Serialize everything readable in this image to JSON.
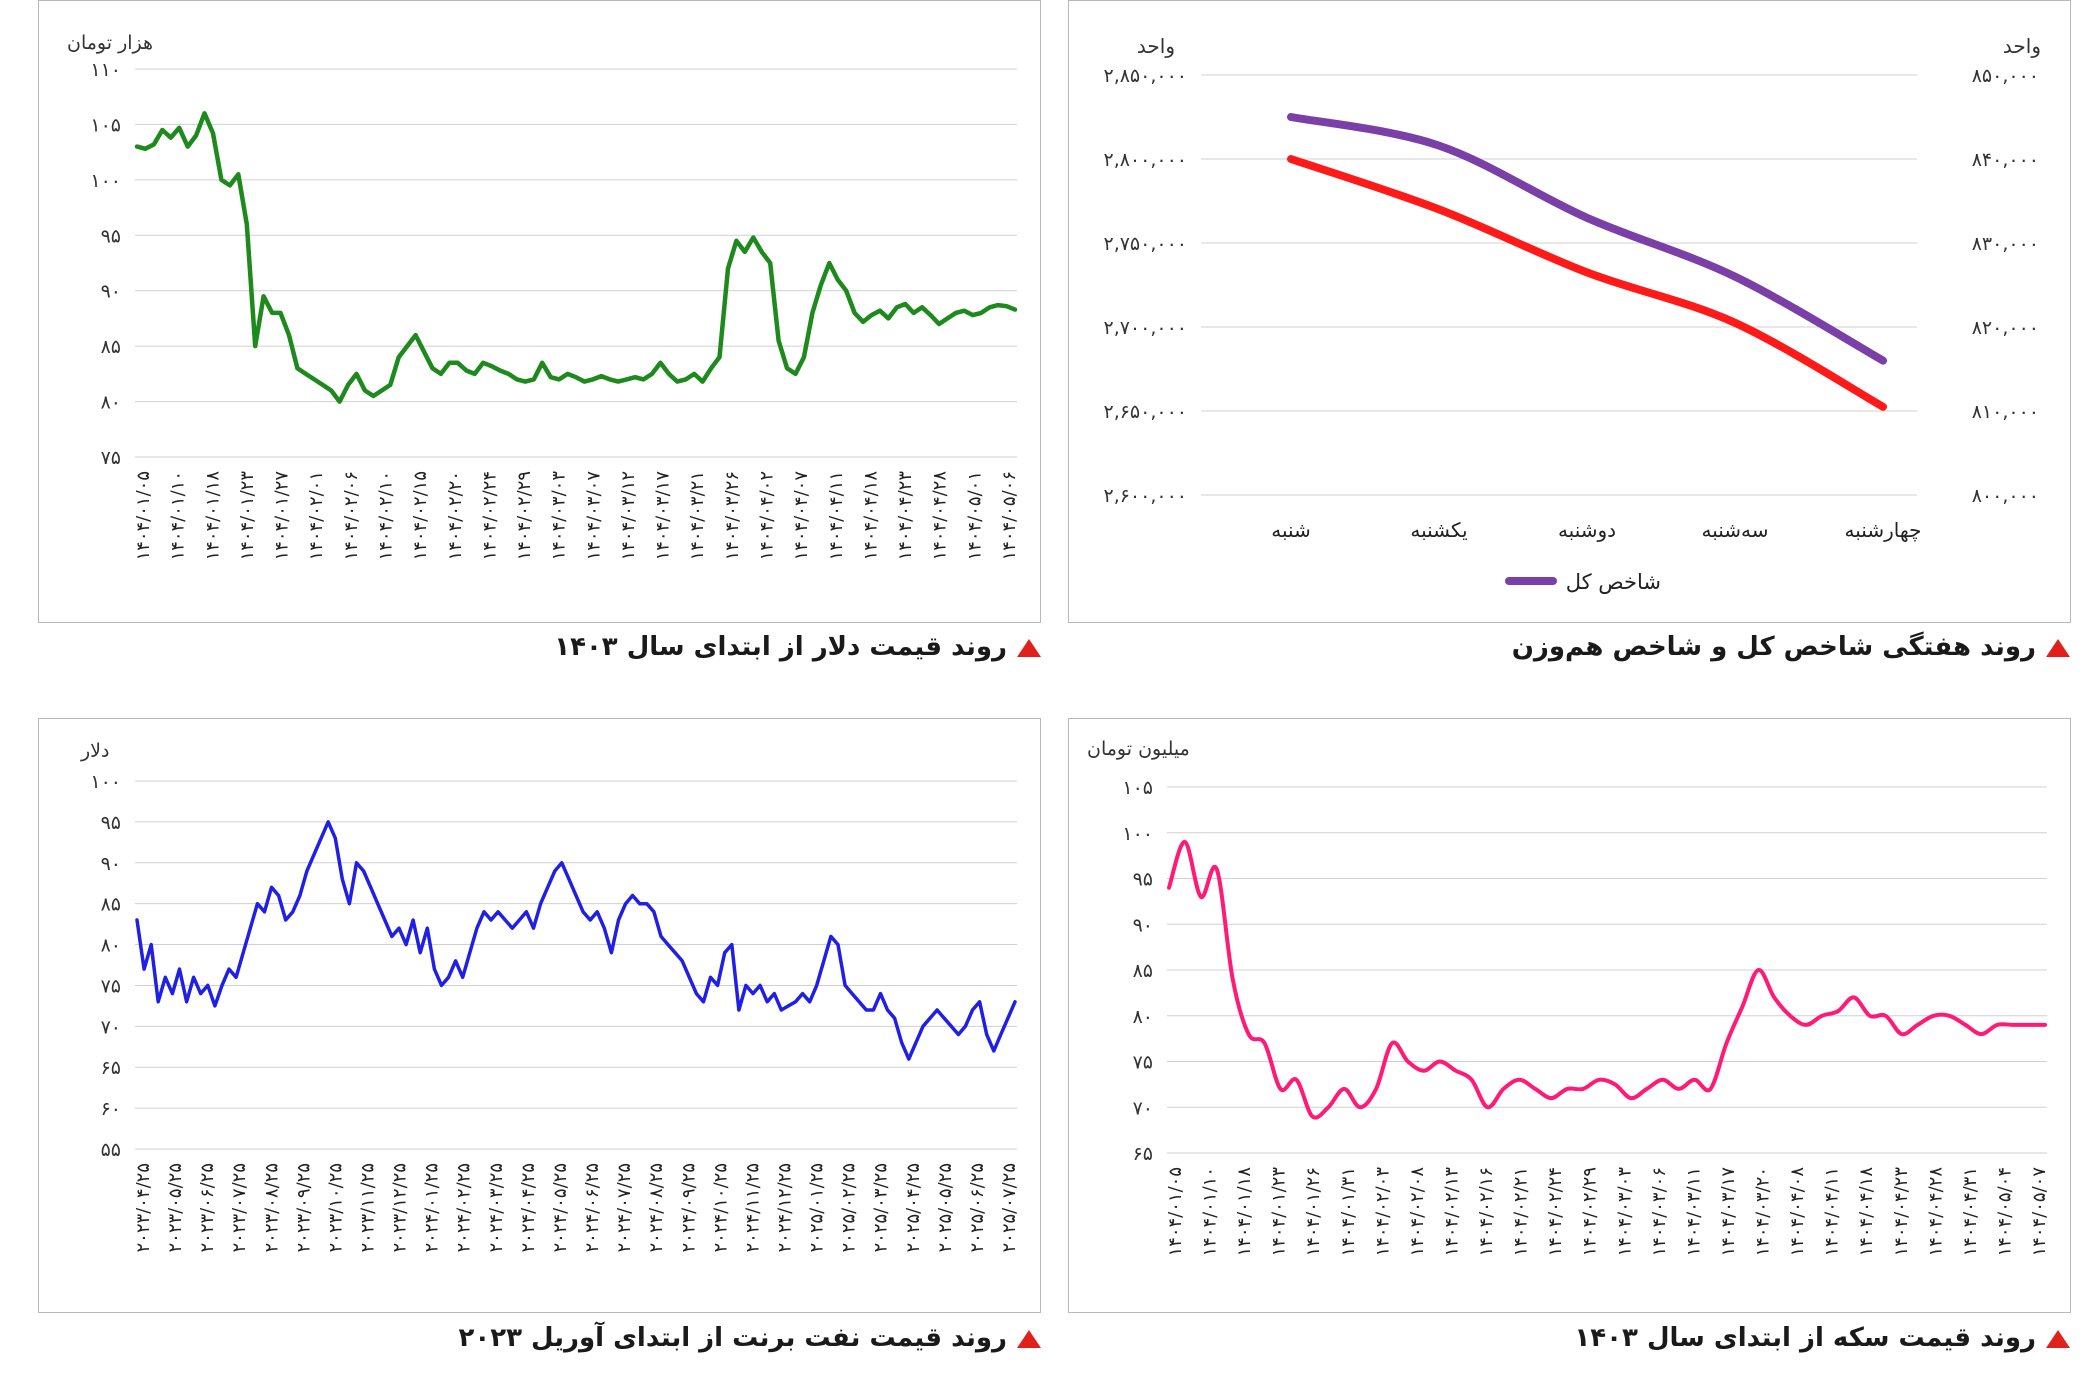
{
  "captions": {
    "dollar": "روند قیمت دلار از ابتدای سال ۱۴۰۳",
    "index": "روند هفتگی شاخص کل و شاخص هم‌وزن",
    "brent": "روند قیمت نفت برنت از ابتدای آوریل ۲۰۲۳",
    "coin": "روند قیمت سکه از ابتدای سال ۱۴۰۳"
  },
  "colors": {
    "dollar": "#1e8a1e",
    "index_main": "#7b3fa8",
    "index_eq": "#ff1a1a",
    "brent": "#1f1fe6",
    "coin": "#ff1a75",
    "grid": "#d0d0d0"
  },
  "chart_data": [
    {
      "id": "dollar",
      "type": "line",
      "ylabel": "هزار تومان",
      "ylim": [
        75,
        110
      ],
      "yticks": [
        75,
        80,
        85,
        90,
        95,
        100,
        105,
        110
      ],
      "ytick_labels": [
        "۷۵",
        "۸۰",
        "۸۵",
        "۹۰",
        "۹۵",
        "۱۰۰",
        "۱۰۵",
        "۱۱۰"
      ],
      "grid": true,
      "xtick_labels": [
        "۱۴۰۴/۰۱/۰۵",
        "۱۴۰۴/۰۱/۱۰",
        "۱۴۰۴/۰۱/۱۸",
        "۱۴۰۴/۰۱/۲۳",
        "۱۴۰۴/۰۱/۲۷",
        "۱۴۰۴/۰۲/۰۱",
        "۱۴۰۴/۰۲/۰۶",
        "۱۴۰۴/۰۲/۱۰",
        "۱۴۰۴/۰۲/۱۵",
        "۱۴۰۴/۰۲/۲۰",
        "۱۴۰۴/۰۲/۲۴",
        "۱۴۰۴/۰۲/۲۹",
        "۱۴۰۴/۰۳/۰۳",
        "۱۴۰۴/۰۳/۰۷",
        "۱۴۰۴/۰۳/۱۲",
        "۱۴۰۴/۰۳/۱۷",
        "۱۴۰۴/۰۳/۲۱",
        "۱۴۰۴/۰۳/۲۶",
        "۱۴۰۴/۰۴/۰۲",
        "۱۴۰۴/۰۴/۰۷",
        "۱۴۰۴/۰۴/۱۱",
        "۱۴۰۴/۰۴/۱۸",
        "۱۴۰۴/۰۴/۲۳",
        "۱۴۰۴/۰۴/۲۸",
        "۱۴۰۴/۰۵/۰۱",
        "۱۴۰۴/۰۵/۰۶"
      ],
      "values": [
        103,
        102.8,
        103.2,
        104.5,
        103.8,
        104.7,
        103,
        104,
        106,
        104.2,
        100,
        99.5,
        100.5,
        96,
        85,
        89.5,
        88,
        88,
        86,
        83,
        82.5,
        82,
        81.5,
        81,
        80,
        81.5,
        82.5,
        81,
        80.5,
        81,
        81.5,
        84,
        85,
        86,
        84.5,
        83,
        82.5,
        83.5,
        83.5,
        82.8,
        82.5,
        83.5,
        83.2,
        82.8,
        82.5,
        82,
        81.8,
        82,
        83.5,
        82.2,
        82,
        82.5,
        82.2,
        81.8,
        82,
        82.3,
        82,
        81.8,
        82,
        82.2,
        82,
        82.5,
        83.5,
        82.5,
        81.8,
        82,
        82.5,
        81.8,
        83,
        84,
        92,
        94.5,
        93.5,
        94.8,
        93.5,
        92.5,
        85.5,
        83,
        82.5,
        84,
        88,
        90.5,
        92.5,
        91,
        90,
        88,
        87.2,
        87.8,
        88.2,
        87.5,
        88.5,
        88.8,
        88,
        88.5,
        87.8,
        87,
        87.5,
        88,
        88.2,
        87.8,
        88,
        88.5,
        88.7,
        88.6,
        88.3
      ]
    },
    {
      "id": "index",
      "type": "line",
      "ylabel": "واحد",
      "ylabel_right": "واحد",
      "categories": [
        "شنبه",
        "یکشنبه",
        "دوشنبه",
        "سه‌شنبه",
        "چهارشنبه"
      ],
      "ylim": [
        2600000,
        2850000
      ],
      "yticks": [
        2600000,
        2650000,
        2700000,
        2750000,
        2800000,
        2850000
      ],
      "ytick_labels": [
        "۲,۶۰۰,۰۰۰",
        "۲,۶۵۰,۰۰۰",
        "۲,۷۰۰,۰۰۰",
        "۲,۷۵۰,۰۰۰",
        "۲,۸۰۰,۰۰۰",
        "۲,۸۵۰,۰۰۰"
      ],
      "ylim_right": [
        800000,
        850000
      ],
      "yticks_right": [
        800000,
        810000,
        820000,
        830000,
        840000,
        850000
      ],
      "ytick_labels_right": [
        "۸۰۰,۰۰۰",
        "۸۱۰,۰۰۰",
        "۸۲۰,۰۰۰",
        "۸۳۰,۰۰۰",
        "۸۴۰,۰۰۰",
        "۸۵۰,۰۰۰"
      ],
      "grid": true,
      "legend_placement": "bottom",
      "series": [
        {
          "name": "شاخص کل",
          "axis": "left",
          "values": [
            2825000,
            2808000,
            2765000,
            2730000,
            2680000
          ]
        },
        {
          "axis": "right",
          "values": [
            840000,
            834000,
            826500,
            820500,
            810500
          ]
        }
      ]
    },
    {
      "id": "brent",
      "type": "line",
      "ylabel": "دلار",
      "ylim": [
        55,
        100
      ],
      "yticks": [
        55,
        60,
        65,
        70,
        75,
        80,
        85,
        90,
        95,
        100
      ],
      "ytick_labels": [
        "۵۵",
        "۶۰",
        "۶۵",
        "۷۰",
        "۷۵",
        "۸۰",
        "۸۵",
        "۹۰",
        "۹۵",
        "۱۰۰"
      ],
      "grid": true,
      "xtick_labels": [
        "۲۰۲۳/۰۴/۲۵",
        "۲۰۲۳/۰۵/۲۵",
        "۲۰۲۳/۰۶/۲۵",
        "۲۰۲۳/۰۷/۲۵",
        "۲۰۲۳/۰۸/۲۵",
        "۲۰۲۳/۰۹/۲۵",
        "۲۰۲۳/۱۰/۲۵",
        "۲۰۲۳/۱۱/۲۵",
        "۲۰۲۳/۱۲/۲۵",
        "۲۰۲۴/۰۱/۲۵",
        "۲۰۲۴/۰۲/۲۵",
        "۲۰۲۴/۰۳/۲۵",
        "۲۰۲۴/۰۴/۲۵",
        "۲۰۲۴/۰۵/۲۵",
        "۲۰۲۴/۰۶/۲۵",
        "۲۰۲۴/۰۷/۲۵",
        "۲۰۲۴/۰۸/۲۵",
        "۲۰۲۴/۰۹/۲۵",
        "۲۰۲۴/۱۰/۲۵",
        "۲۰۲۴/۱۱/۲۵",
        "۲۰۲۴/۱۲/۲۵",
        "۲۰۲۵/۰۱/۲۵",
        "۲۰۲۵/۰۲/۲۵",
        "۲۰۲۵/۰۳/۲۵",
        "۲۰۲۵/۰۴/۲۵",
        "۲۰۲۵/۰۵/۲۵",
        "۲۰۲۵/۰۶/۲۵",
        "۲۰۲۵/۰۷/۲۵"
      ],
      "values": [
        83,
        77,
        80,
        73,
        76,
        74,
        77,
        73,
        76,
        74,
        75,
        72.5,
        75,
        77,
        76,
        79,
        82,
        85,
        84,
        87,
        86,
        83,
        84,
        86,
        89,
        91,
        93,
        95,
        93,
        88,
        85,
        90,
        89,
        87,
        85,
        83,
        81,
        82,
        80,
        83,
        79,
        82,
        77,
        75,
        76,
        78,
        76,
        79,
        82,
        84,
        83,
        84,
        83,
        82,
        83,
        84,
        82,
        85,
        87,
        89,
        90,
        88,
        86,
        84,
        83,
        84,
        82,
        79,
        83,
        85,
        86,
        85,
        85,
        84,
        81,
        80,
        79,
        78,
        76,
        74,
        73,
        76,
        75,
        79,
        80,
        72,
        75,
        74,
        75,
        73,
        74,
        72,
        72.5,
        73,
        74,
        73,
        75,
        78,
        81,
        80,
        75,
        74,
        73,
        72,
        72,
        74,
        72,
        71,
        68,
        66,
        68,
        70,
        71,
        72,
        71,
        70,
        69,
        70,
        72,
        73,
        69,
        67,
        69,
        71,
        73
      ]
    },
    {
      "id": "coin",
      "type": "line",
      "ylabel": "میلیون تومان",
      "ylim": [
        65,
        105
      ],
      "yticks": [
        65,
        70,
        75,
        80,
        85,
        90,
        95,
        100,
        105
      ],
      "ytick_labels": [
        "۶۵",
        "۷۰",
        "۷۵",
        "۸۰",
        "۸۵",
        "۹۰",
        "۹۵",
        "۱۰۰",
        "۱۰۵"
      ],
      "grid": true,
      "xtick_labels": [
        "۱۴۰۴/۰۱/۰۵",
        "۱۴۰۴/۰۱/۱۰",
        "۱۴۰۴/۰۱/۱۸",
        "۱۴۰۴/۰۱/۲۳",
        "۱۴۰۴/۰۱/۲۶",
        "۱۴۰۴/۰۱/۳۱",
        "۱۴۰۴/۰۲/۰۳",
        "۱۴۰۴/۰۲/۰۸",
        "۱۴۰۴/۰۲/۱۳",
        "۱۴۰۴/۰۲/۱۶",
        "۱۴۰۴/۰۲/۲۱",
        "۱۴۰۴/۰۲/۲۴",
        "۱۴۰۴/۰۲/۲۹",
        "۱۴۰۴/۰۳/۰۳",
        "۱۴۰۴/۰۳/۰۶",
        "۱۴۰۴/۰۳/۱۱",
        "۱۴۰۴/۰۳/۱۷",
        "۱۴۰۴/۰۳/۲۰",
        "۱۴۰۴/۰۴/۰۸",
        "۱۴۰۴/۰۴/۱۱",
        "۱۴۰۴/۰۴/۱۸",
        "۱۴۰۴/۰۴/۲۳",
        "۱۴۰۴/۰۴/۲۸",
        "۱۴۰۴/۰۴/۳۱",
        "۱۴۰۴/۰۵/۰۴",
        "۱۴۰۴/۰۵/۰۷"
      ],
      "values": [
        94,
        99,
        93,
        96,
        84,
        78,
        77,
        72,
        73,
        69,
        70,
        72,
        70,
        72,
        77,
        75,
        74,
        75,
        74,
        73,
        70,
        72,
        73,
        72,
        71,
        72,
        72,
        73,
        72.5,
        71,
        72,
        73,
        72,
        73,
        72,
        77,
        81,
        85,
        82,
        80,
        79,
        80,
        80.5,
        82,
        80,
        80,
        78,
        79,
        80,
        80,
        79,
        78,
        79,
        79,
        79,
        79
      ]
    }
  ]
}
